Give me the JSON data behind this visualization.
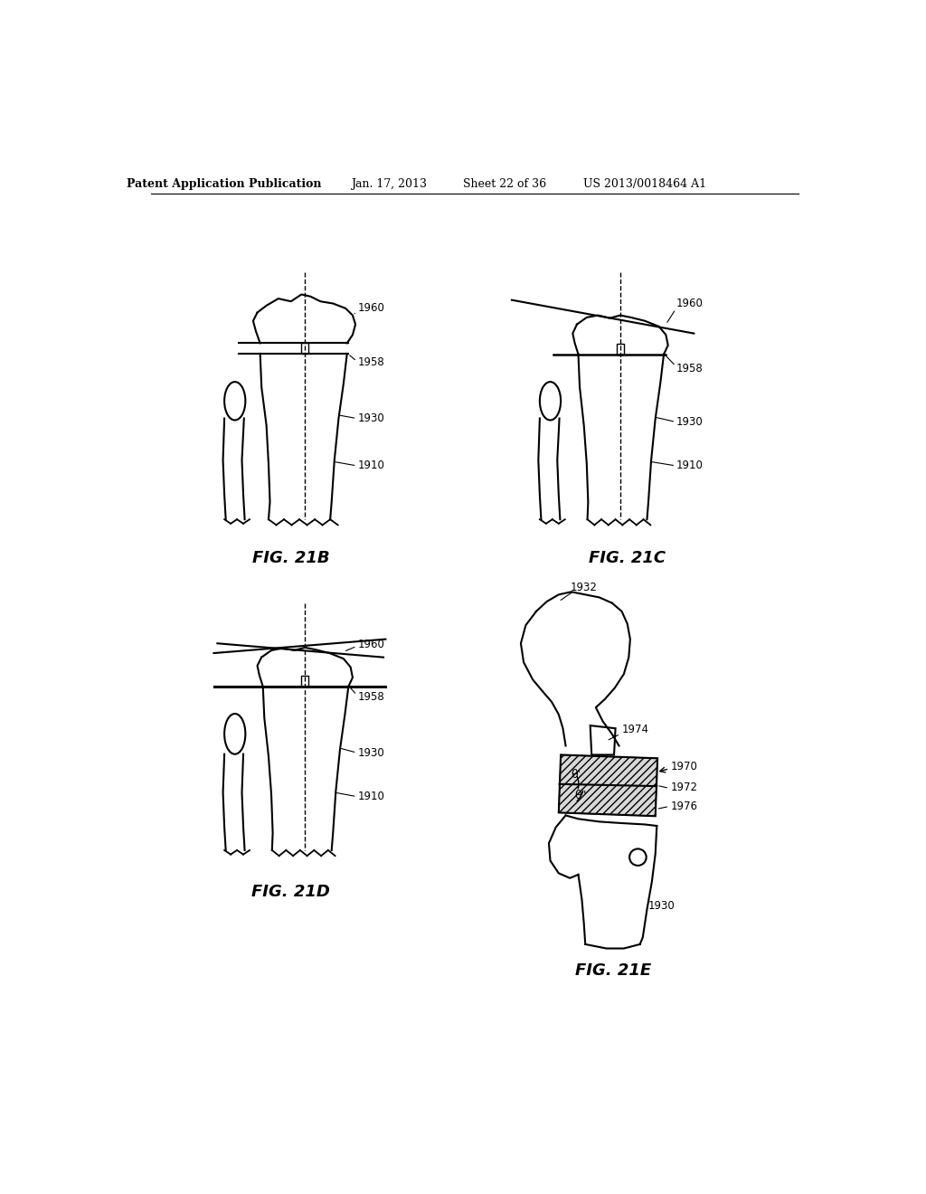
{
  "bg_color": "#ffffff",
  "header_text": "Patent Application Publication",
  "header_date": "Jan. 17, 2013",
  "header_sheet": "Sheet 22 of 36",
  "header_patent": "US 2013/0018464 A1"
}
